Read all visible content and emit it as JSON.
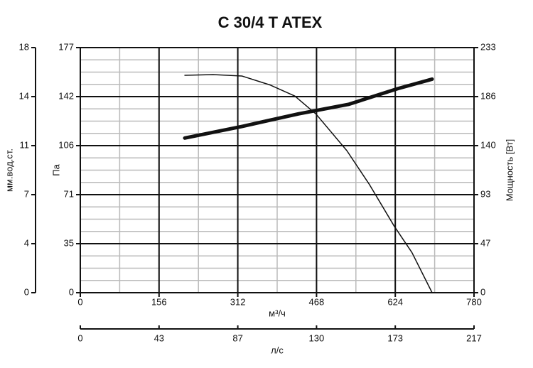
{
  "chart_data": {
    "type": "line",
    "title": "C 30/4 T ATEX",
    "xlabel": "м³/ч",
    "xlim": [
      0,
      780
    ],
    "xticks": [
      0,
      156,
      312,
      468,
      624,
      780
    ],
    "x2label": "л/с",
    "x2lim": [
      0,
      216.7
    ],
    "x2ticks": [
      0,
      {
        "value": 43.34,
        "label": "43"
      },
      {
        "value": 86.68,
        "label": "87"
      },
      {
        "value": 130.02,
        "label": "130"
      },
      {
        "value": 173.36,
        "label": "173"
      },
      {
        "value": 216.7,
        "label": "217"
      }
    ],
    "ylabel": "Па",
    "ylim": [
      0,
      177
    ],
    "yticks": [
      0,
      {
        "value": 35.4,
        "label": "35"
      },
      {
        "value": 70.8,
        "label": "71"
      },
      {
        "value": 106.2,
        "label": "106"
      },
      {
        "value": 141.6,
        "label": "142"
      },
      177
    ],
    "y2label": "Мощность [Вт]",
    "y2lim": [
      0,
      233
    ],
    "y2ticks": [
      0,
      {
        "value": 46.6,
        "label": "47"
      },
      {
        "value": 93.2,
        "label": "93"
      },
      {
        "value": 139.8,
        "label": "140"
      },
      {
        "value": 186.4,
        "label": "186"
      },
      233
    ],
    "y3label": "мм.вод.ст.",
    "y3lim": [
      0,
      18
    ],
    "y3ticks": [
      0,
      {
        "value": 3.6,
        "label": "4"
      },
      {
        "value": 7.2,
        "label": "7"
      },
      {
        "value": 10.8,
        "label": "11"
      },
      {
        "value": 14.4,
        "label": "14"
      },
      18
    ],
    "grid": true,
    "minor_divisions": [
      2,
      4
    ],
    "series": [
      {
        "color": "#111111",
        "width": 1.5,
        "x": [
          207,
          263,
          320,
          376,
          425,
          467,
          528,
          573,
          622,
          657,
          697
        ],
        "values": [
          157,
          157.5,
          156.5,
          150,
          142,
          129,
          102.6,
          78,
          48,
          29,
          0
        ]
      },
      {
        "color": "#111111",
        "width": 5,
        "axis": "y2",
        "x": [
          207,
          320,
          432,
          531,
          629,
          697
        ],
        "values": [
          147,
          158,
          170,
          179,
          194,
          203
        ]
      }
    ]
  }
}
